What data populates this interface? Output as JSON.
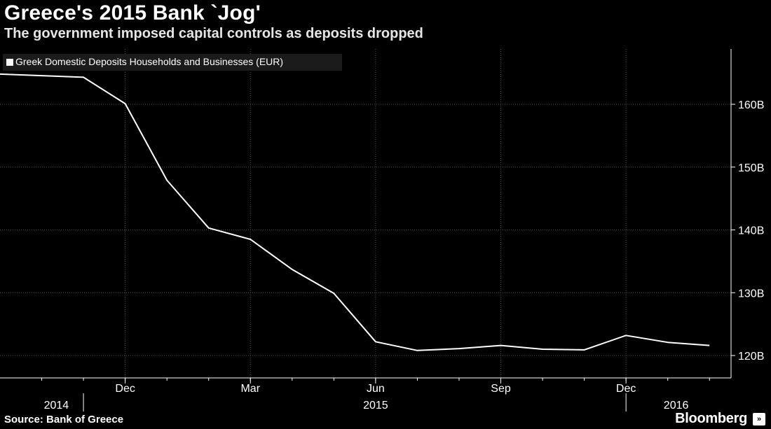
{
  "title": "Greece's 2015 Bank `Jog'",
  "subtitle": "The government imposed capital controls as deposits dropped",
  "source": "Source: Bank of Greece",
  "brand": "Bloomberg",
  "brand_icon": "»",
  "colors": {
    "background": "#000000",
    "line": "#ffffff",
    "grid": "#555555",
    "axis_text": "#ffffff"
  },
  "chart_data": {
    "type": "line",
    "title": "Greece's 2015 Bank `Jog'",
    "subtitle": "The government imposed capital controls as deposits dropped",
    "xlabel": "",
    "ylabel": "",
    "ylim": [
      115,
      170
    ],
    "y_ticks": [
      120,
      130,
      140,
      150,
      160
    ],
    "y_tick_labels": [
      "120B",
      "130B",
      "140B",
      "150B",
      "160B"
    ],
    "x_tick_labels": [
      "Dec",
      "Mar",
      "Jun",
      "Sep",
      "Dec"
    ],
    "x_tick_positions": [
      2,
      5,
      8,
      11,
      14
    ],
    "year_labels": [
      {
        "label": "2014",
        "at": 0.35
      },
      {
        "label": "2015",
        "at": 8
      },
      {
        "label": "2016",
        "at": 15.2
      }
    ],
    "year_separators": [
      1,
      14
    ],
    "x_range": [
      -1,
      16.5
    ],
    "legend": "top-left",
    "series": [
      {
        "name": "Greek Domestic Deposits Households and Businesses (EUR)",
        "x": [
          -1,
          1,
          2,
          3,
          4,
          5,
          6,
          7,
          8,
          9,
          10,
          11,
          12,
          13,
          14,
          15,
          16
        ],
        "values": [
          164.8,
          164.3,
          160.1,
          147.9,
          140.3,
          138.5,
          133.7,
          129.9,
          122.2,
          120.8,
          121.1,
          121.6,
          121.0,
          120.9,
          123.2,
          122.1,
          121.6
        ]
      }
    ]
  }
}
